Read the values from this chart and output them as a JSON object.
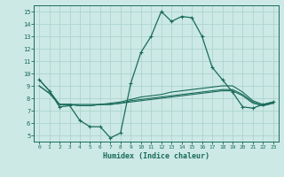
{
  "x_ticks": [
    0,
    1,
    2,
    3,
    4,
    5,
    6,
    7,
    8,
    9,
    10,
    11,
    12,
    13,
    14,
    15,
    16,
    17,
    18,
    19,
    20,
    21,
    22,
    23
  ],
  "ylim": [
    4.5,
    15.5
  ],
  "xlim": [
    -0.5,
    23.5
  ],
  "yticks": [
    5,
    6,
    7,
    8,
    9,
    10,
    11,
    12,
    13,
    14,
    15
  ],
  "bg_color": "#cce9e5",
  "grid_color": "#aed4cf",
  "line_color": "#1a6b5a",
  "xlabel": "Humidex (Indice chaleur)",
  "series": {
    "main": [
      9.5,
      8.6,
      7.3,
      7.4,
      6.2,
      5.7,
      5.7,
      4.8,
      5.2,
      9.2,
      11.7,
      13.0,
      15.0,
      14.2,
      14.6,
      14.5,
      13.0,
      10.5,
      9.5,
      8.5,
      7.3,
      7.2,
      7.5,
      7.7
    ],
    "line2": [
      9.5,
      8.6,
      7.5,
      7.5,
      7.5,
      7.5,
      7.5,
      7.6,
      7.7,
      7.9,
      8.1,
      8.2,
      8.3,
      8.5,
      8.6,
      8.7,
      8.8,
      8.9,
      9.0,
      9.0,
      8.5,
      7.8,
      7.5,
      7.7
    ],
    "line3": [
      9.0,
      8.4,
      7.5,
      7.5,
      7.4,
      7.4,
      7.5,
      7.5,
      7.6,
      7.8,
      7.9,
      8.0,
      8.1,
      8.2,
      8.3,
      8.4,
      8.5,
      8.6,
      8.7,
      8.7,
      8.3,
      7.7,
      7.4,
      7.6
    ],
    "line4": [
      9.0,
      8.4,
      7.5,
      7.5,
      7.4,
      7.4,
      7.5,
      7.5,
      7.6,
      7.7,
      7.8,
      7.9,
      8.0,
      8.1,
      8.2,
      8.3,
      8.4,
      8.5,
      8.6,
      8.6,
      8.2,
      7.6,
      7.4,
      7.6
    ]
  }
}
